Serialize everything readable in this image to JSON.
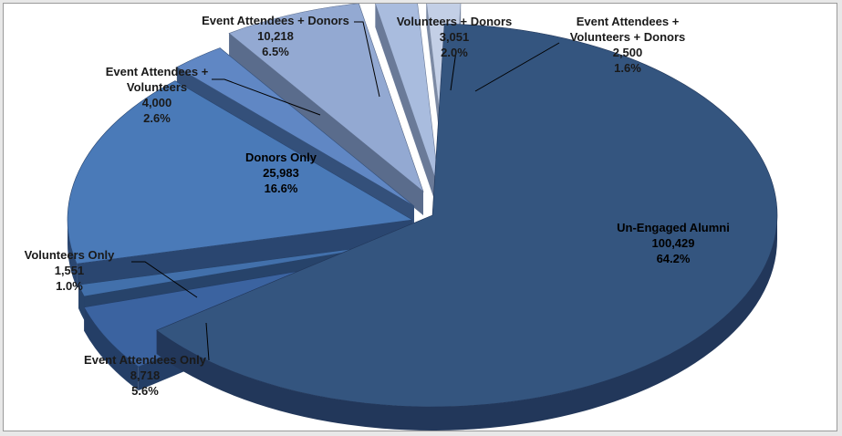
{
  "chart_data": {
    "type": "pie",
    "style": "3d-exploded",
    "title": "",
    "legend": "none",
    "slices": [
      {
        "label": "Un-Engaged Alumni",
        "value": 100429,
        "value_text": "100,429",
        "percent_text": "64.2%",
        "color": "#34557f",
        "side": "#22375a"
      },
      {
        "label": "Event Attendees Only",
        "value": 8718,
        "value_text": "8,718",
        "percent_text": "5.6%",
        "color": "#3b63a0",
        "side": "#243e66"
      },
      {
        "label": "Volunteers Only",
        "value": 1551,
        "value_text": "1,551",
        "percent_text": "1.0%",
        "color": "#4270ab",
        "side": "#27436a"
      },
      {
        "label": "Donors Only",
        "value": 25983,
        "value_text": "25,983",
        "percent_text": "16.6%",
        "color": "#4a7ab8",
        "side": "#2a4670"
      },
      {
        "label": "Event Attendees + Volunteers",
        "value": 4000,
        "value_text": "4,000",
        "percent_text": "2.6%",
        "color": "#6087c4",
        "side": "#34507a"
      },
      {
        "label": "Event Attendees + Donors",
        "value": 10218,
        "value_text": "10,218",
        "percent_text": "6.5%",
        "color": "#93a9d2",
        "side": "#5a6c8c"
      },
      {
        "label": "Volunteers + Donors",
        "value": 3051,
        "value_text": "3,051",
        "percent_text": "2.0%",
        "color": "#a9bcde",
        "side": "#6a7a98"
      },
      {
        "label": "Event Attendees + Volunteers + Donors",
        "value": 2500,
        "value_text": "2,500",
        "percent_text": "1.6%",
        "color": "#c3cfe6",
        "side": "#7c8aa4"
      }
    ]
  }
}
